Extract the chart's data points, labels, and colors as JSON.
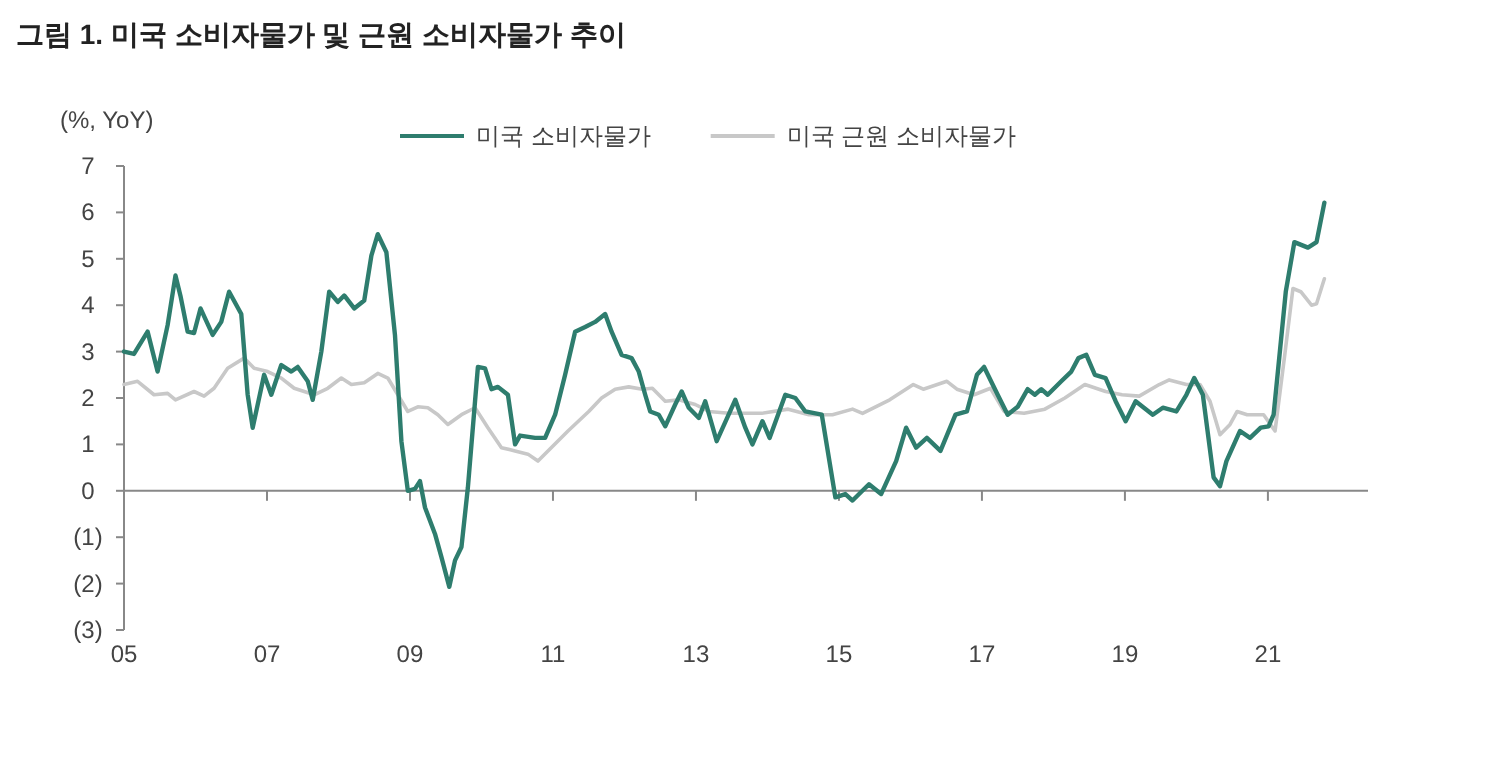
{
  "chart_data": {
    "type": "line",
    "title": "그림 1. 미국 소비자물가 및 근원 소비자물가 추이",
    "ylabel": "(%, YoY)",
    "xlim": [
      2005,
      2022.4
    ],
    "xticks": [
      {
        "value": 2005,
        "label": "05"
      },
      {
        "value": 2007,
        "label": "07"
      },
      {
        "value": 2009,
        "label": "09"
      },
      {
        "value": 2011,
        "label": "11"
      },
      {
        "value": 2013,
        "label": "13"
      },
      {
        "value": 2015,
        "label": "15"
      },
      {
        "value": 2017,
        "label": "17"
      },
      {
        "value": 2019,
        "label": "19"
      },
      {
        "value": 2021,
        "label": "21"
      }
    ],
    "ylim": [
      -3,
      7
    ],
    "yticks": [
      {
        "value": -3,
        "label": "(3)"
      },
      {
        "value": -2,
        "label": "(2)"
      },
      {
        "value": -1,
        "label": "(1)"
      },
      0,
      1,
      2,
      3,
      4,
      5,
      6,
      7
    ],
    "legend": "top",
    "marker": "none",
    "line_style": "solid",
    "series": [
      {
        "name": "미국 소비자물가",
        "color": "#2e7d6e",
        "x": [
          2005.0,
          2005.14,
          2005.33,
          2005.47,
          2005.61,
          2005.72,
          2005.79,
          2005.89,
          2005.98,
          2006.07,
          2006.24,
          2006.36,
          2006.47,
          2006.64,
          2006.73,
          2006.8,
          2006.96,
          2007.06,
          2007.2,
          2007.34,
          2007.43,
          2007.57,
          2007.64,
          2007.76,
          2007.87,
          2007.99,
          2008.08,
          2008.22,
          2008.36,
          2008.46,
          2008.55,
          2008.67,
          2008.79,
          2008.88,
          2008.97,
          2009.07,
          2009.14,
          2009.21,
          2009.35,
          2009.44,
          2009.55,
          2009.63,
          2009.72,
          2009.81,
          2009.91,
          2009.95,
          2010.05,
          2010.14,
          2010.23,
          2010.37,
          2010.47,
          2010.54,
          2010.75,
          2010.89,
          2011.03,
          2011.17,
          2011.31,
          2011.45,
          2011.59,
          2011.73,
          2011.82,
          2011.96,
          2012.1,
          2012.2,
          2012.29,
          2012.36,
          2012.48,
          2012.57,
          2012.71,
          2012.8,
          2012.9,
          2013.04,
          2013.13,
          2013.29,
          2013.55,
          2013.69,
          2013.79,
          2013.93,
          2014.03,
          2014.25,
          2014.39,
          2014.53,
          2014.76,
          2014.95,
          2015.09,
          2015.19,
          2015.42,
          2015.59,
          2015.8,
          2015.94,
          2016.08,
          2016.23,
          2016.42,
          2016.63,
          2016.79,
          2016.93,
          2017.03,
          2017.22,
          2017.36,
          2017.5,
          2017.64,
          2017.74,
          2017.83,
          2017.92,
          2018.11,
          2018.25,
          2018.35,
          2018.46,
          2018.58,
          2018.73,
          2018.87,
          2019.01,
          2019.15,
          2019.39,
          2019.53,
          2019.72,
          2019.86,
          2019.97,
          2020.09,
          2020.24,
          2020.33,
          2020.42,
          2020.61,
          2020.75,
          2020.9,
          2021.01,
          2021.08,
          2021.25,
          2021.37,
          2021.56,
          2021.68,
          2021.79
        ],
        "values": [
          3.0,
          2.95,
          3.43,
          2.57,
          3.57,
          4.64,
          4.2,
          3.43,
          3.4,
          3.93,
          3.36,
          3.64,
          4.29,
          3.81,
          2.07,
          1.36,
          2.5,
          2.07,
          2.71,
          2.57,
          2.67,
          2.36,
          1.96,
          3.0,
          4.29,
          4.07,
          4.21,
          3.93,
          4.1,
          5.07,
          5.53,
          5.14,
          3.36,
          1.07,
          0.0,
          0.04,
          0.21,
          -0.36,
          -0.93,
          -1.43,
          -2.07,
          -1.5,
          -1.21,
          0.07,
          1.93,
          2.67,
          2.64,
          2.19,
          2.24,
          2.07,
          1.0,
          1.19,
          1.14,
          1.14,
          1.64,
          2.5,
          3.43,
          3.53,
          3.64,
          3.81,
          3.43,
          2.93,
          2.86,
          2.57,
          2.07,
          1.71,
          1.64,
          1.39,
          1.86,
          2.14,
          1.79,
          1.57,
          1.93,
          1.07,
          1.96,
          1.36,
          1.0,
          1.5,
          1.14,
          2.07,
          2.0,
          1.71,
          1.64,
          -0.14,
          -0.07,
          -0.21,
          0.14,
          -0.07,
          0.64,
          1.36,
          0.93,
          1.14,
          0.86,
          1.64,
          1.71,
          2.5,
          2.67,
          2.07,
          1.64,
          1.81,
          2.19,
          2.07,
          2.19,
          2.07,
          2.36,
          2.57,
          2.86,
          2.93,
          2.5,
          2.43,
          1.93,
          1.5,
          1.93,
          1.64,
          1.79,
          1.71,
          2.07,
          2.43,
          2.07,
          0.29,
          0.1,
          0.64,
          1.29,
          1.14,
          1.36,
          1.39,
          1.64,
          4.29,
          5.36,
          5.24,
          5.36,
          6.21
        ]
      },
      {
        "name": "미국 근원 소비자물가",
        "color": "#c8c8c8",
        "x": [
          2005.0,
          2005.19,
          2005.42,
          2005.61,
          2005.72,
          2005.98,
          2006.12,
          2006.26,
          2006.45,
          2006.68,
          2006.82,
          2007.01,
          2007.2,
          2007.38,
          2007.66,
          2007.85,
          2008.04,
          2008.18,
          2008.36,
          2008.55,
          2008.69,
          2008.83,
          2008.97,
          2009.11,
          2009.25,
          2009.39,
          2009.53,
          2009.72,
          2009.91,
          2010.09,
          2010.28,
          2010.47,
          2010.65,
          2010.79,
          2010.93,
          2011.21,
          2011.5,
          2011.68,
          2011.87,
          2012.06,
          2012.25,
          2012.39,
          2012.57,
          2012.76,
          2012.99,
          2013.18,
          2013.46,
          2013.92,
          2014.29,
          2014.58,
          2014.91,
          2015.19,
          2015.33,
          2015.71,
          2016.04,
          2016.18,
          2016.51,
          2016.65,
          2016.89,
          2017.12,
          2017.31,
          2017.59,
          2017.88,
          2018.16,
          2018.44,
          2018.73,
          2018.96,
          2019.2,
          2019.48,
          2019.62,
          2019.86,
          2020.05,
          2020.19,
          2020.33,
          2020.47,
          2020.57,
          2020.71,
          2020.94,
          2021.1,
          2021.23,
          2021.35,
          2021.46,
          2021.61,
          2021.68,
          2021.79
        ],
        "values": [
          2.29,
          2.36,
          2.07,
          2.1,
          1.96,
          2.14,
          2.04,
          2.21,
          2.64,
          2.86,
          2.64,
          2.57,
          2.43,
          2.21,
          2.07,
          2.21,
          2.43,
          2.29,
          2.33,
          2.53,
          2.43,
          2.07,
          1.71,
          1.81,
          1.79,
          1.64,
          1.43,
          1.64,
          1.79,
          1.36,
          0.93,
          0.86,
          0.79,
          0.64,
          0.86,
          1.29,
          1.71,
          2.0,
          2.19,
          2.24,
          2.19,
          2.21,
          1.93,
          1.96,
          1.86,
          1.71,
          1.67,
          1.67,
          1.76,
          1.64,
          1.64,
          1.76,
          1.67,
          1.96,
          2.29,
          2.19,
          2.36,
          2.19,
          2.07,
          2.21,
          1.71,
          1.67,
          1.76,
          2.0,
          2.29,
          2.14,
          2.07,
          2.04,
          2.29,
          2.39,
          2.29,
          2.29,
          1.93,
          1.21,
          1.43,
          1.71,
          1.64,
          1.64,
          1.29,
          2.86,
          4.36,
          4.29,
          4.0,
          4.03,
          4.57
        ]
      }
    ]
  }
}
